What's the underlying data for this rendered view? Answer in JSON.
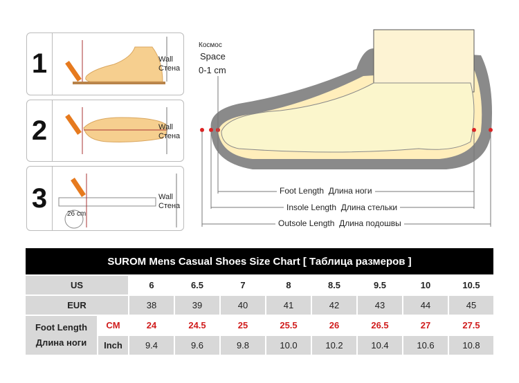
{
  "steps": [
    {
      "number": "1",
      "wall_en": "Wall",
      "wall_ru": "Стена"
    },
    {
      "number": "2",
      "wall_en": "Wall",
      "wall_ru": "Стена"
    },
    {
      "number": "3",
      "wall_en": "Wall",
      "wall_ru": "Стена",
      "ruler_label": "26 cm"
    }
  ],
  "diagram": {
    "space_ru": "Космос",
    "space_en": "Space",
    "space_range": "0-1 cm",
    "foot_length_en": "Foot Length",
    "foot_length_ru": "Длина ноги",
    "insole_length_en": "Insole Length",
    "insole_length_ru": "Длина стельки",
    "outsole_length_en": "Outsole Length",
    "outsole_length_ru": "Длина подошвы"
  },
  "table": {
    "title": "SUROM Mens Casual Shoes Size Chart   [ Таблица размеров ]",
    "us_label": "US",
    "eur_label": "EUR",
    "foot_length_en": "Foot Length",
    "foot_length_ru": "Длина ноги",
    "cm_label": "CM",
    "inch_label": "Inch",
    "us": [
      "6",
      "6.5",
      "7",
      "8",
      "8.5",
      "9.5",
      "10",
      "10.5"
    ],
    "eur": [
      "38",
      "39",
      "40",
      "41",
      "42",
      "43",
      "44",
      "45"
    ],
    "cm": [
      "24",
      "24.5",
      "25",
      "25.5",
      "26",
      "26.5",
      "27",
      "27.5"
    ],
    "inch": [
      "9.4",
      "9.6",
      "9.8",
      "10.0",
      "10.2",
      "10.4",
      "10.6",
      "10.8"
    ]
  }
}
